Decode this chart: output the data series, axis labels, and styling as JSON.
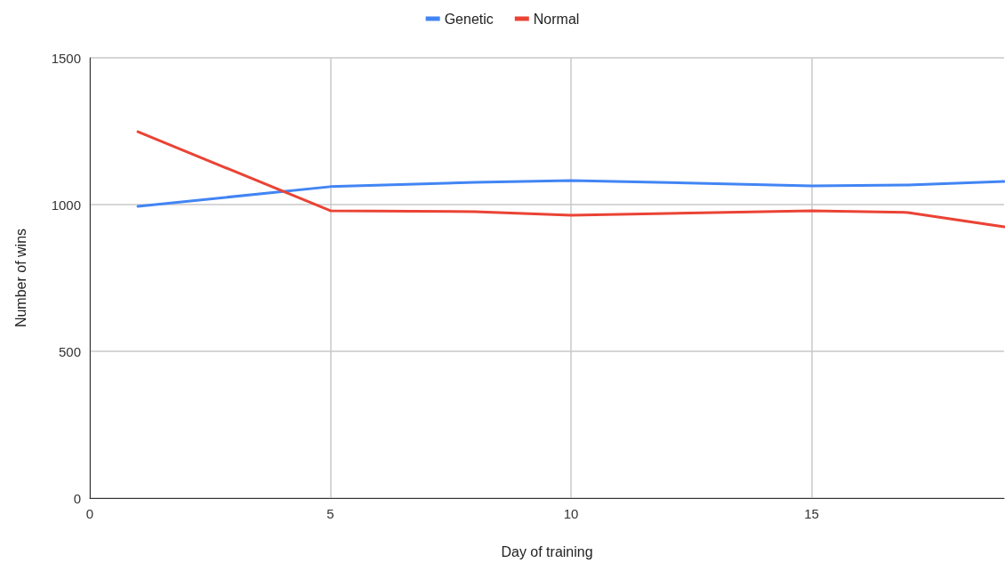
{
  "chart_data": {
    "type": "line",
    "xlabel": "Day of training",
    "ylabel": "Number of wins",
    "x": [
      1,
      5,
      8,
      10,
      15,
      17,
      19
    ],
    "series": [
      {
        "name": "Genetic",
        "color": "#4285f4",
        "values": [
          994,
          1061,
          1076,
          1082,
          1064,
          1067,
          1079
        ]
      },
      {
        "name": "Normal",
        "color": "#ea4335",
        "values": [
          1248,
          979,
          976,
          964,
          979,
          973,
          924
        ]
      }
    ],
    "xlim": [
      0,
      19
    ],
    "xticks": [
      0,
      5,
      10,
      15
    ],
    "ylim": [
      0,
      1500
    ],
    "yticks": [
      0,
      500,
      1000,
      1500
    ],
    "grid": true,
    "legend": "top",
    "marker": "none",
    "line_style": "solid"
  }
}
